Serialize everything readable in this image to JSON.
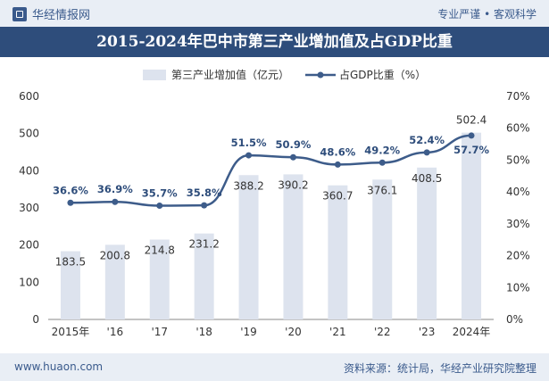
{
  "header": {
    "brand": "华经情报网",
    "tagline": "专业严谨 • 客观科学",
    "title": "2015-2024年巴中市第三产业增加值及占GDP比重"
  },
  "footer": {
    "site": "www.huaon.com",
    "source": "资料来源：统计局，华经产业研究院整理"
  },
  "colors": {
    "bar": "#dde3ee",
    "line": "#3d5c8a",
    "title_bg": "#2e4d7b",
    "band_bg": "#e9eef5"
  },
  "chart_data": {
    "type": "bar+line",
    "categories": [
      "2015年",
      "'16",
      "'17",
      "'18",
      "'19",
      "'20",
      "'21",
      "'22",
      "'23",
      "2024年"
    ],
    "series": [
      {
        "name": "第三产业增加值（亿元）",
        "type": "bar",
        "axis": "left",
        "values": [
          183.5,
          200.8,
          214.8,
          231.2,
          388.2,
          390.2,
          360.7,
          376.1,
          408.5,
          502.4
        ],
        "labels": [
          "183.5",
          "200.8",
          "214.8",
          "231.2",
          "388.2",
          "390.2",
          "360.7",
          "376.1",
          "408.5",
          "502.4"
        ]
      },
      {
        "name": "占GDP比重（%）",
        "type": "line",
        "axis": "right",
        "values": [
          36.6,
          36.9,
          35.7,
          35.8,
          51.5,
          50.9,
          48.6,
          49.2,
          52.4,
          57.7
        ],
        "labels": [
          "36.6%",
          "36.9%",
          "35.7%",
          "35.8%",
          "51.5%",
          "50.9%",
          "48.6%",
          "49.2%",
          "52.4%",
          "57.7%"
        ]
      }
    ],
    "y_left": {
      "ylim": [
        0,
        600
      ],
      "ticks": [
        "0",
        "100",
        "200",
        "300",
        "400",
        "500",
        "600"
      ]
    },
    "y_right": {
      "ylim": [
        0,
        70
      ],
      "ticks": [
        "0%",
        "10%",
        "20%",
        "30%",
        "40%",
        "50%",
        "60%",
        "70%"
      ]
    },
    "legend_position": "top-center",
    "grid": false
  }
}
